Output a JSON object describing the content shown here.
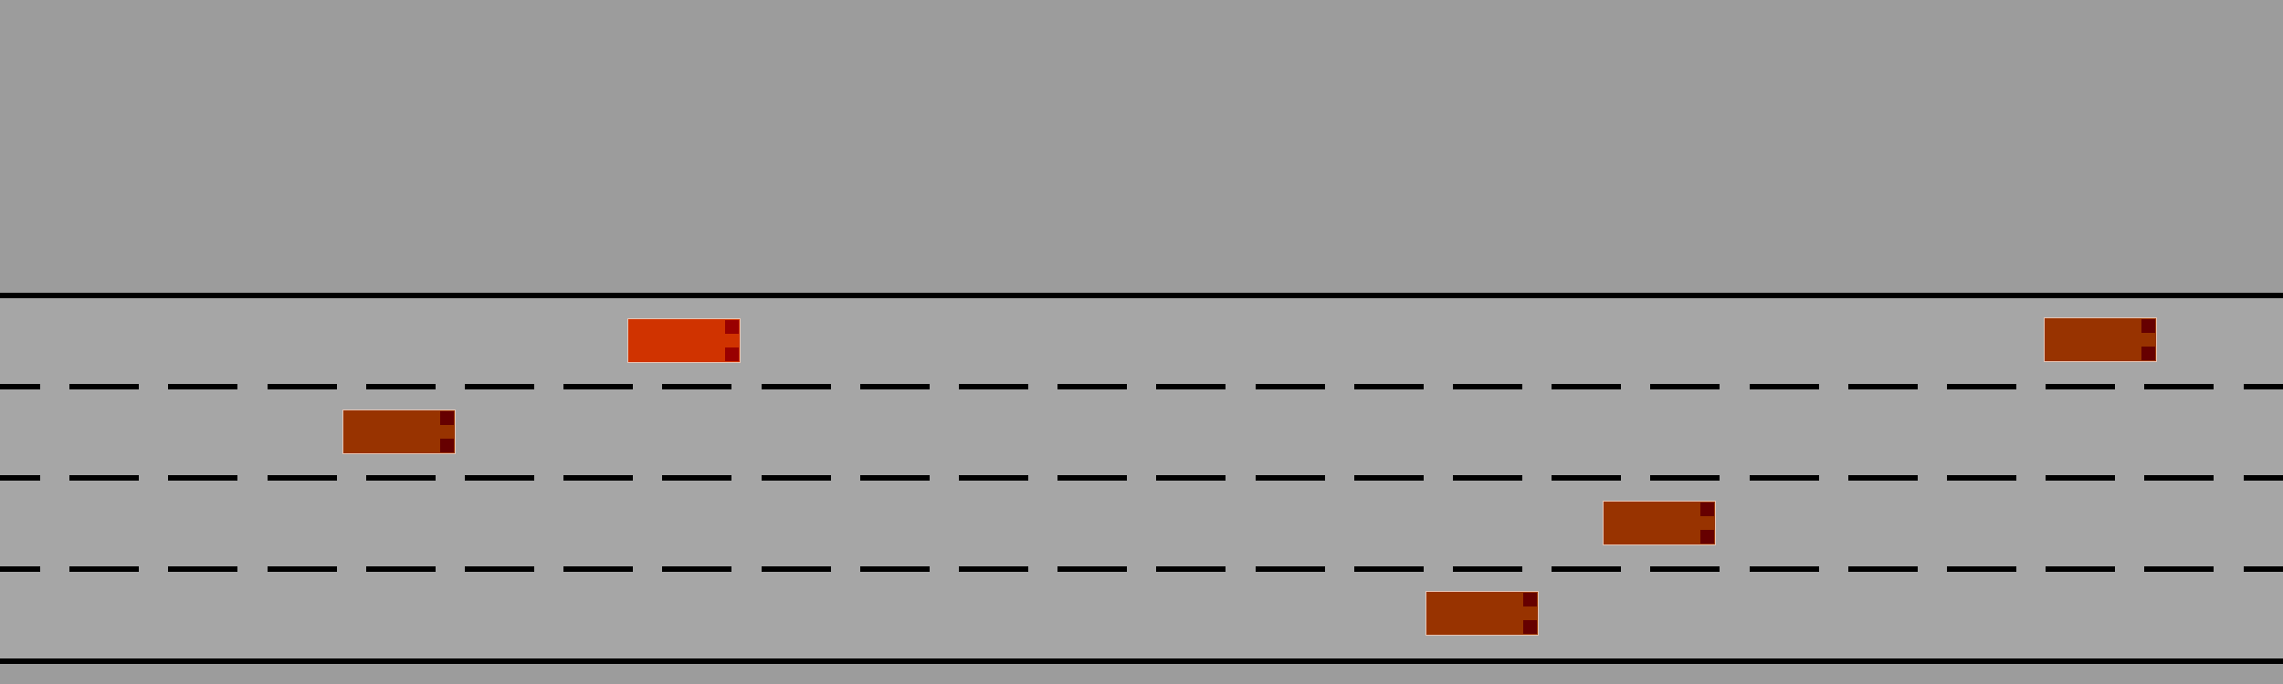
{
  "scene": {
    "background_color": "#9c9c9c",
    "road_color": "#a6a6a6",
    "line_color": "#000000",
    "lane_count": 4
  },
  "cars": [
    {
      "id": "player",
      "lane": 1,
      "role": "player",
      "body_color": "#d03300",
      "light_color": "#990000"
    },
    {
      "id": "traffic-1",
      "lane": 1,
      "role": "traffic",
      "body_color": "#983300",
      "light_color": "#660000"
    },
    {
      "id": "traffic-2",
      "lane": 2,
      "role": "traffic",
      "body_color": "#983300",
      "light_color": "#660000"
    },
    {
      "id": "traffic-3",
      "lane": 3,
      "role": "traffic",
      "body_color": "#983300",
      "light_color": "#660000"
    },
    {
      "id": "traffic-4",
      "lane": 4,
      "role": "traffic",
      "body_color": "#983300",
      "light_color": "#660000"
    }
  ]
}
